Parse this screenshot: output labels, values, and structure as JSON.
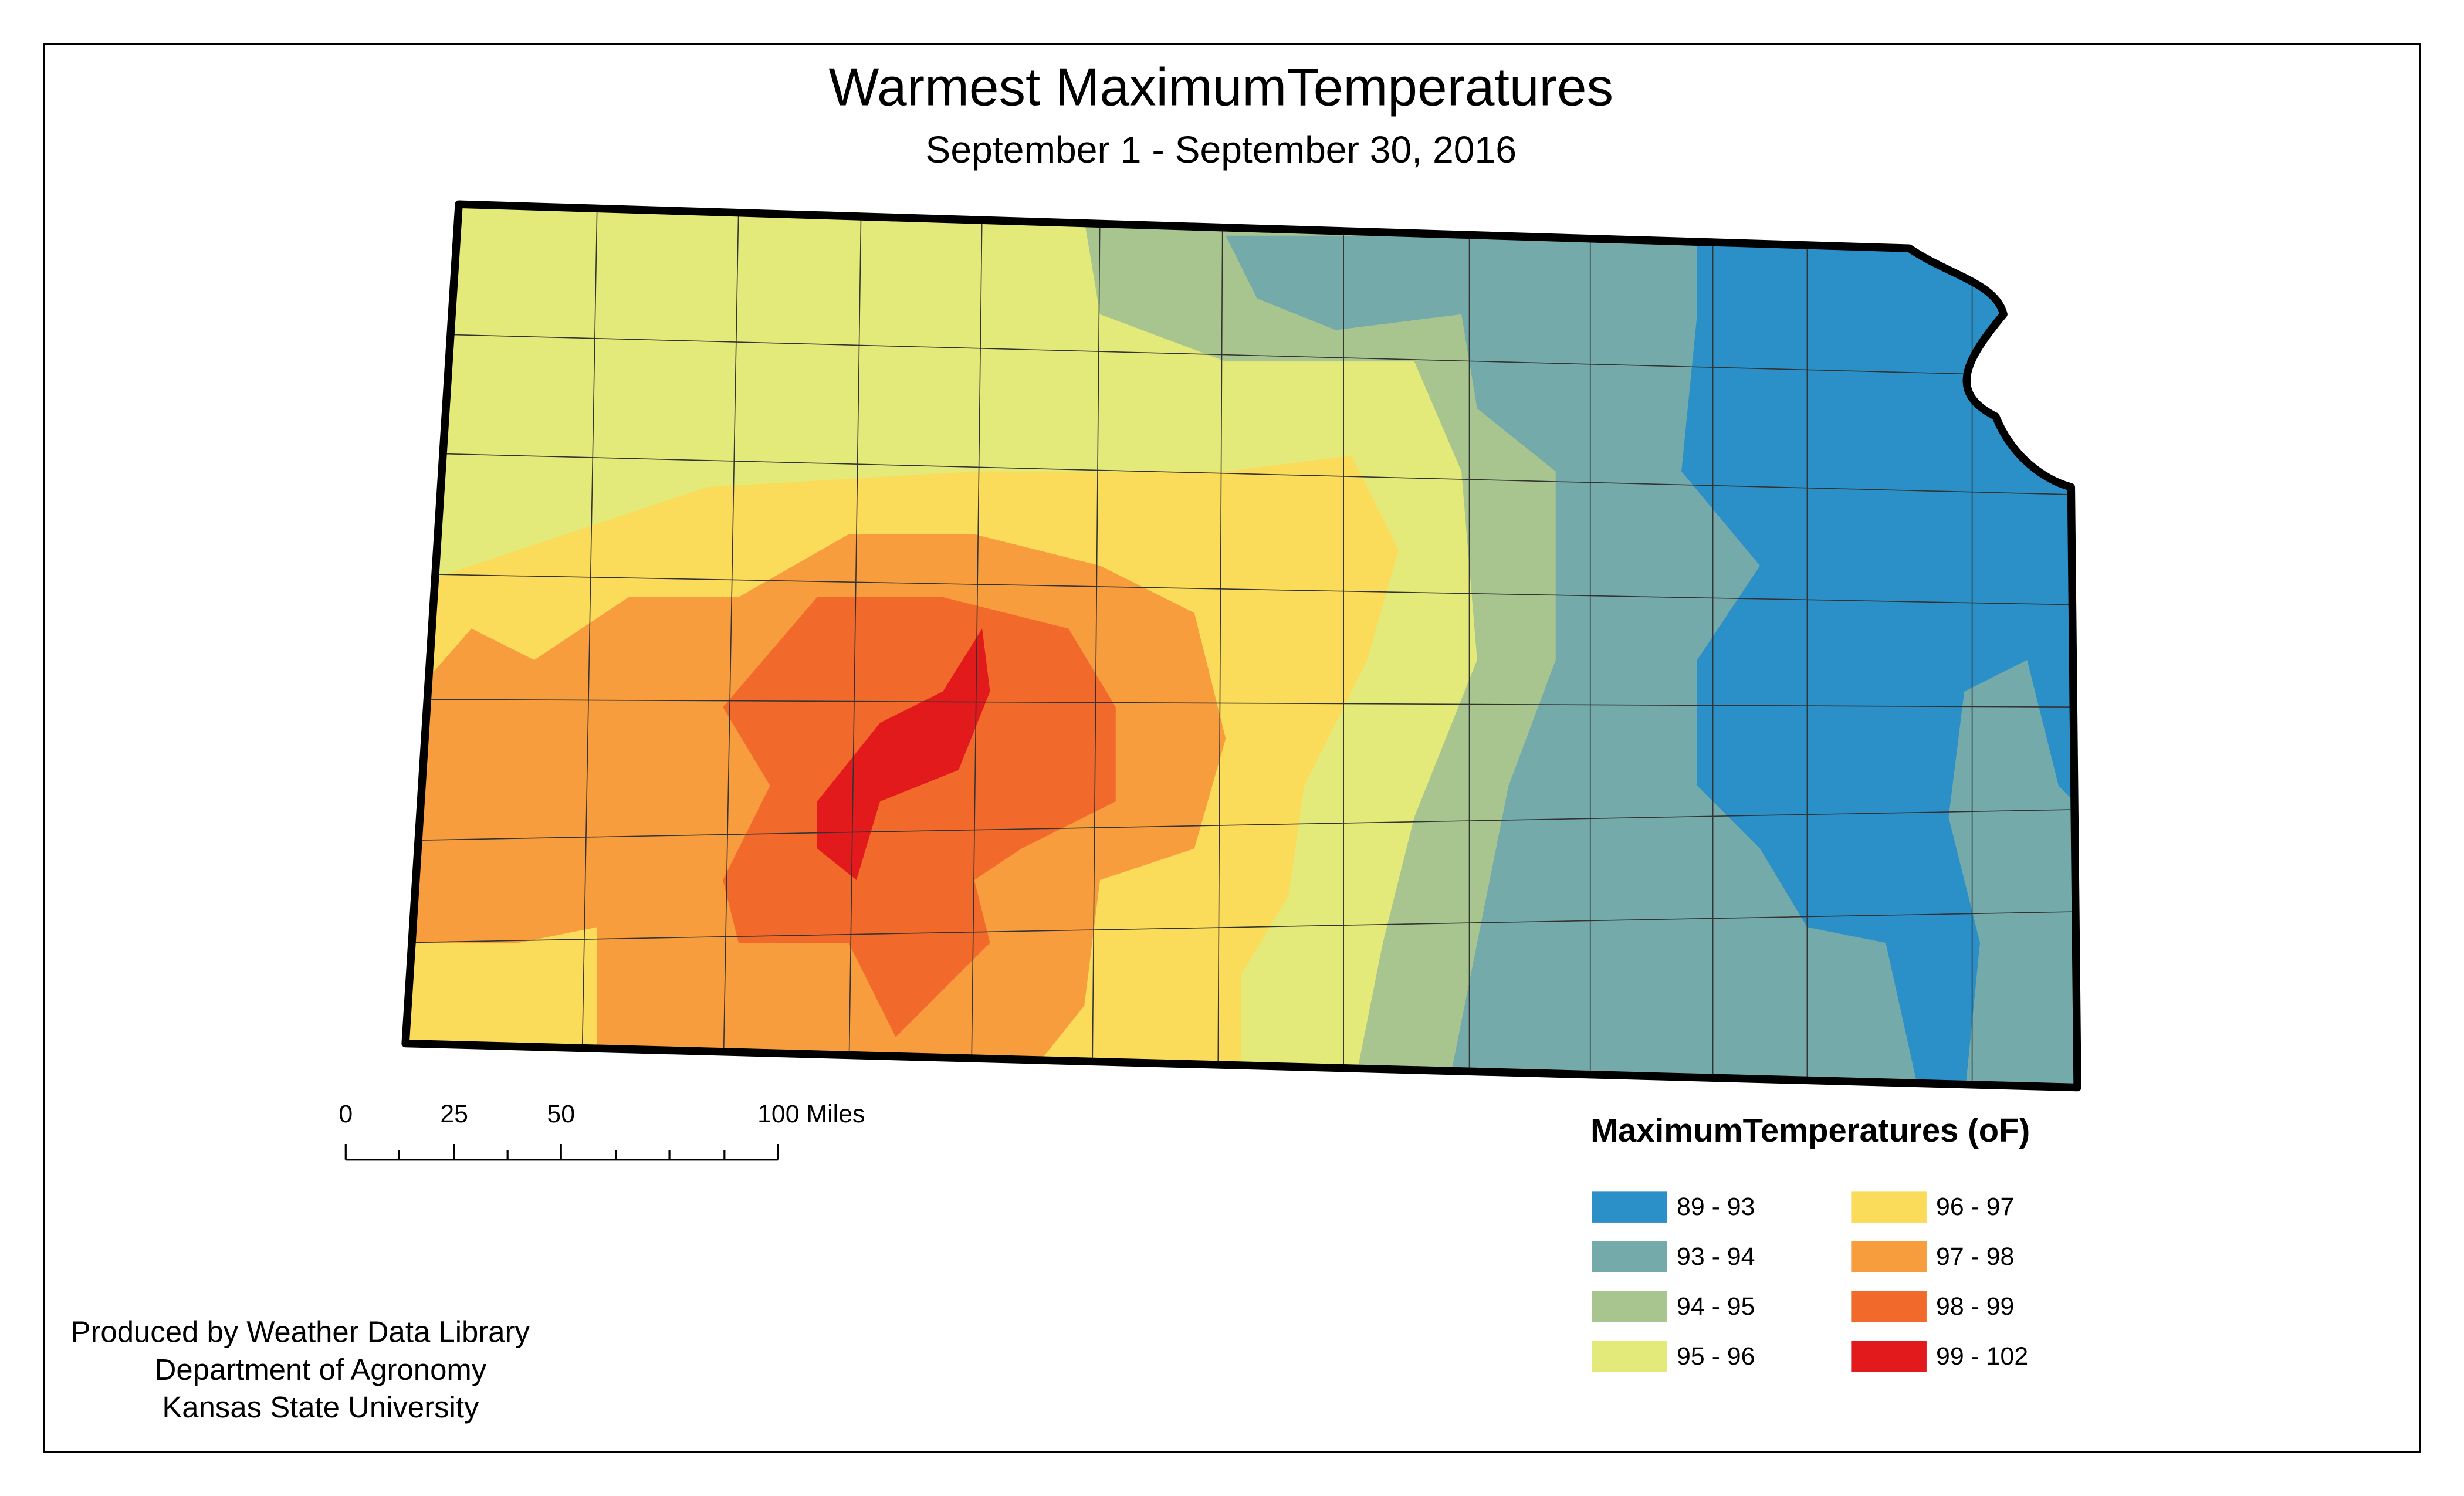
{
  "title": "Warmest MaximumTemperatures",
  "subtitle": "September 1 - September 30, 2016",
  "scale_bar": {
    "labels": [
      "0",
      "25",
      "50",
      "100 Miles"
    ]
  },
  "legend": {
    "title": "MaximumTemperatures (oF)",
    "items": [
      {
        "label": "89 - 93",
        "color": "#2b8fc8"
      },
      {
        "label": "93 - 94",
        "color": "#74aaa9"
      },
      {
        "label": "94 - 95",
        "color": "#a8c58f"
      },
      {
        "label": "95 - 96",
        "color": "#e3ea7a"
      },
      {
        "label": "96 - 97",
        "color": "#fbdc5a"
      },
      {
        "label": "97 - 98",
        "color": "#f89d3e"
      },
      {
        "label": "98 - 99",
        "color": "#f26a2b"
      },
      {
        "label": "99 - 102",
        "color": "#e31a1c"
      }
    ]
  },
  "credits": [
    "Produced by Weather Data Library",
    "Department of Agronomy",
    "Kansas State University"
  ]
}
